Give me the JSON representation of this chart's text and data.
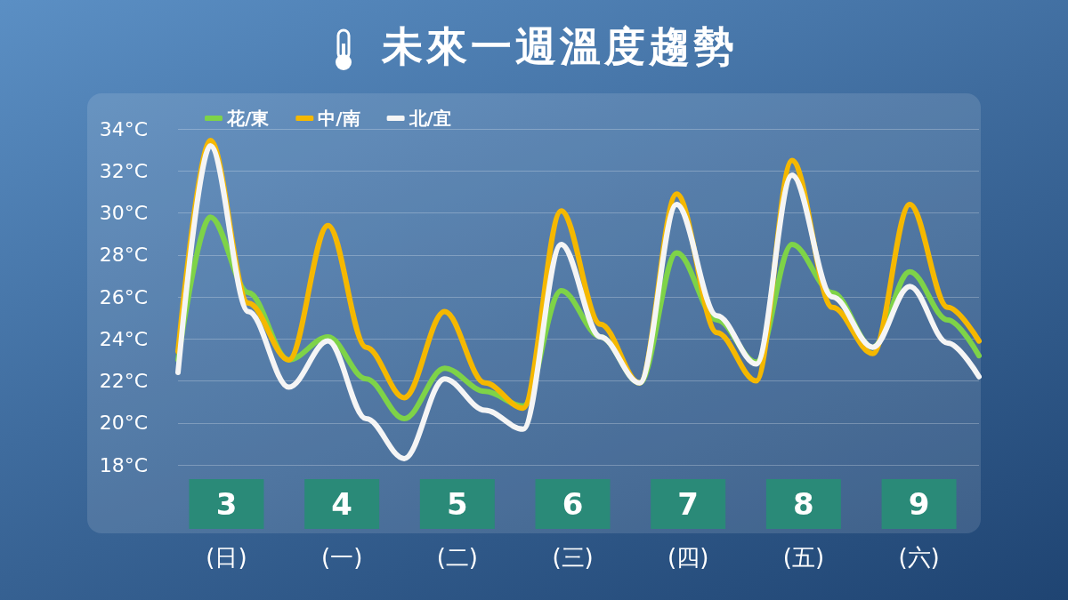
{
  "chart_data": {
    "type": "line",
    "title": "未來一週溫度趨勢",
    "x": [
      2.58,
      2.86,
      3.19,
      3.54,
      3.88,
      4.21,
      4.54,
      4.89,
      5.24,
      5.57,
      5.9,
      6.24,
      6.58,
      6.9,
      7.25,
      7.59,
      7.9,
      8.25,
      8.6,
      8.92,
      9.25,
      9.52
    ],
    "series": [
      {
        "name": "花/東",
        "color": "#7ed348",
        "values": [
          23.0,
          29.8,
          26.2,
          23.0,
          24.1,
          22.1,
          20.2,
          22.6,
          21.5,
          20.8,
          26.3,
          24.1,
          21.9,
          28.1,
          24.9,
          22.9,
          28.5,
          26.2,
          23.6,
          27.2,
          24.9,
          23.2
        ]
      },
      {
        "name": "中/南",
        "color": "#f5b800",
        "values": [
          23.4,
          33.45,
          25.7,
          23.0,
          29.4,
          23.6,
          21.2,
          25.3,
          21.9,
          20.7,
          30.1,
          24.7,
          21.9,
          30.9,
          24.3,
          22.0,
          32.5,
          25.5,
          23.3,
          30.4,
          25.5,
          23.9
        ]
      },
      {
        "name": "北/宜",
        "color": "#f5f5f5",
        "values": [
          22.4,
          33.2,
          25.3,
          21.7,
          23.9,
          20.2,
          18.3,
          22.1,
          20.6,
          19.7,
          28.5,
          24.1,
          21.9,
          30.4,
          25.1,
          22.8,
          31.8,
          26.0,
          23.6,
          26.5,
          23.8,
          22.2
        ]
      }
    ],
    "xlim": [
      2.58,
      9.52
    ],
    "xticks": [
      {
        "value": 3,
        "label": "3\n(日)"
      },
      {
        "value": 4,
        "label": "4\n(一)"
      },
      {
        "value": 5,
        "label": "5\n(二)"
      },
      {
        "value": 6,
        "label": "6\n(三)"
      },
      {
        "value": 7,
        "label": "7\n(四)"
      },
      {
        "value": 8,
        "label": "8\n(五)"
      },
      {
        "value": 9,
        "label": "9\n(六)"
      }
    ],
    "ylim": [
      18,
      34
    ],
    "yticks": [
      {
        "value": 18,
        "label": "18°C"
      },
      {
        "value": 20,
        "label": "20°C"
      },
      {
        "value": 22,
        "label": "22°C"
      },
      {
        "value": 24,
        "label": "24°C"
      },
      {
        "value": 26,
        "label": "26°C"
      },
      {
        "value": 28,
        "label": "28°C"
      },
      {
        "value": 30,
        "label": "30°C"
      },
      {
        "value": 32,
        "label": "32°C"
      },
      {
        "value": 34,
        "label": "34°C"
      }
    ],
    "grid": "y",
    "legend": "top left",
    "marker": "none",
    "line_style": "solid"
  }
}
